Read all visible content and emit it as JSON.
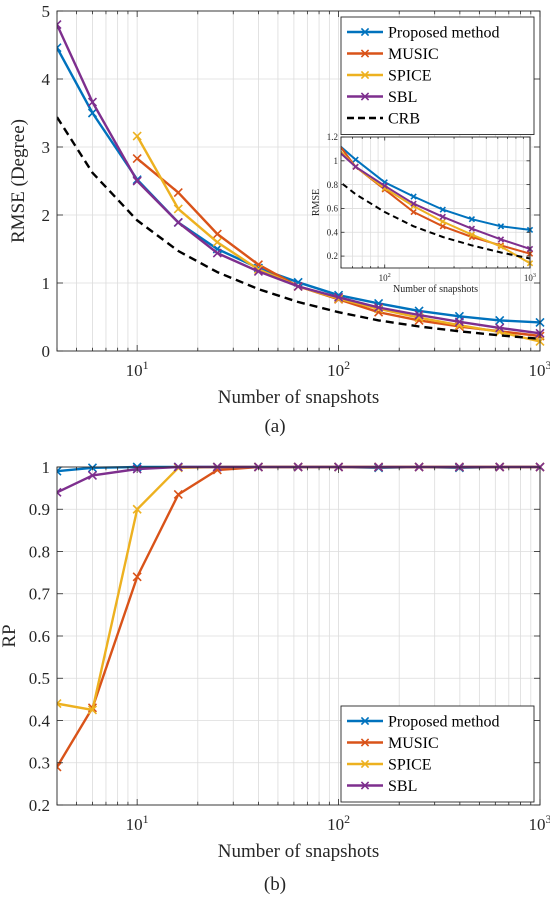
{
  "colors": {
    "proposed": "#0072BD",
    "music": "#D95319",
    "spice": "#EDB120",
    "sbl": "#7E2F8E",
    "crb": "#000000",
    "grid": "#dcdcdc",
    "axis": "#262626"
  },
  "captions": {
    "a": "(a)",
    "b": "(b)"
  },
  "chart_data": [
    {
      "type": "line",
      "panel": "a",
      "xscale": "log",
      "xlim": [
        4,
        1000
      ],
      "ylim": [
        0,
        5
      ],
      "xlabel": "Number of snapshots",
      "ylabel": "RMSE (Degree)",
      "xticks": [
        10,
        100,
        1000
      ],
      "yticks": [
        0,
        1,
        2,
        3,
        4,
        5
      ],
      "ytick_labels": [
        "0",
        "1",
        "2",
        "3",
        "4",
        "5"
      ],
      "grid": true,
      "legend": "top-right",
      "series": [
        {
          "name": "Proposed method",
          "key": "proposed",
          "marker": "x",
          "dash": false,
          "x": [
            4,
            6,
            10,
            16,
            25,
            40,
            63,
            100,
            158,
            251,
            398,
            631,
            1000
          ],
          "y": [
            4.46,
            3.5,
            2.52,
            1.89,
            1.5,
            1.22,
            1.01,
            0.82,
            0.7,
            0.59,
            0.51,
            0.45,
            0.42
          ]
        },
        {
          "name": "MUSIC",
          "key": "music",
          "marker": "x",
          "dash": false,
          "x": [
            10,
            16,
            25,
            40,
            63,
            100,
            158,
            251,
            398,
            631,
            1000
          ],
          "y": [
            2.83,
            2.33,
            1.72,
            1.27,
            0.95,
            0.76,
            0.57,
            0.45,
            0.36,
            0.29,
            0.22
          ]
        },
        {
          "name": "SPICE",
          "key": "spice",
          "marker": "x",
          "dash": false,
          "x": [
            10,
            16,
            25,
            40,
            63,
            100,
            158,
            251,
            398,
            631,
            1000
          ],
          "y": [
            3.16,
            2.09,
            1.6,
            1.2,
            0.95,
            0.77,
            0.62,
            0.49,
            0.38,
            0.28,
            0.14
          ]
        },
        {
          "name": "SBL",
          "key": "sbl",
          "marker": "x",
          "dash": false,
          "x": [
            4,
            6,
            10,
            16,
            25,
            40,
            63,
            100,
            158,
            251,
            398,
            631,
            1000
          ],
          "y": [
            4.8,
            3.66,
            2.5,
            1.89,
            1.44,
            1.17,
            0.95,
            0.79,
            0.64,
            0.53,
            0.43,
            0.34,
            0.26
          ]
        },
        {
          "name": "CRB",
          "key": "crb",
          "marker": "none",
          "dash": true,
          "x": [
            4,
            6,
            10,
            16,
            25,
            40,
            63,
            100,
            158,
            251,
            398,
            631,
            1000
          ],
          "y": [
            3.44,
            2.62,
            1.92,
            1.47,
            1.16,
            0.91,
            0.72,
            0.57,
            0.45,
            0.36,
            0.29,
            0.23,
            0.18
          ]
        }
      ],
      "inset": {
        "xscale": "log",
        "xlim": [
          50,
          1000
        ],
        "ylim": [
          0.1,
          1.2
        ],
        "xlabel": "Number of snapshots",
        "ylabel": "RMSE",
        "xticks": [
          100,
          1000
        ],
        "yticks": [
          0.2,
          0.4,
          0.6,
          0.8,
          1.0,
          1.2
        ],
        "ytick_labels": [
          "0.2",
          "0.4",
          "0.6",
          "0.8",
          "1",
          "1.2"
        ]
      }
    },
    {
      "type": "line",
      "panel": "b",
      "xscale": "log",
      "xlim": [
        4,
        1000
      ],
      "ylim": [
        0.2,
        1.0
      ],
      "xlabel": "Number of snapshots",
      "ylabel": "RP",
      "xticks": [
        10,
        100,
        1000
      ],
      "yticks": [
        0.2,
        0.3,
        0.4,
        0.5,
        0.6,
        0.7,
        0.8,
        0.9,
        1.0
      ],
      "ytick_labels": [
        "0.2",
        "0.3",
        "0.4",
        "0.5",
        "0.6",
        "0.7",
        "0.8",
        "0.9",
        "1"
      ],
      "grid": true,
      "legend": "bottom-right",
      "series": [
        {
          "name": "Proposed method",
          "key": "proposed",
          "marker": "x",
          "dash": false,
          "x": [
            4,
            6,
            10,
            16,
            25,
            40,
            63,
            100,
            158,
            251,
            398,
            631,
            1000
          ],
          "y": [
            0.99,
            0.998,
            1.0,
            1.0,
            1.0,
            1.0,
            1.0,
            1.0,
            0.998,
            1.0,
            0.998,
            1.0,
            1.0
          ]
        },
        {
          "name": "MUSIC",
          "key": "music",
          "marker": "x",
          "dash": false,
          "x": [
            4,
            6,
            10,
            16,
            25,
            40,
            63,
            100,
            158,
            251,
            398,
            631,
            1000
          ],
          "y": [
            0.29,
            0.43,
            0.74,
            0.935,
            0.993,
            1.0,
            1.0,
            1.0,
            1.0,
            1.0,
            1.0,
            1.0,
            1.0
          ]
        },
        {
          "name": "SPICE",
          "key": "spice",
          "marker": "x",
          "dash": false,
          "x": [
            4,
            6,
            10,
            16,
            25,
            40,
            63,
            100,
            158,
            251,
            398,
            631,
            1000
          ],
          "y": [
            0.44,
            0.425,
            0.9,
            0.998,
            1.0,
            1.0,
            1.0,
            1.0,
            1.0,
            1.0,
            1.0,
            1.0,
            1.0
          ]
        },
        {
          "name": "SBL",
          "key": "sbl",
          "marker": "x",
          "dash": false,
          "x": [
            4,
            6,
            10,
            16,
            25,
            40,
            63,
            100,
            158,
            251,
            398,
            631,
            1000
          ],
          "y": [
            0.94,
            0.98,
            0.995,
            1.0,
            1.0,
            1.0,
            1.0,
            1.0,
            1.0,
            1.0,
            1.0,
            1.0,
            1.0
          ]
        }
      ]
    }
  ]
}
